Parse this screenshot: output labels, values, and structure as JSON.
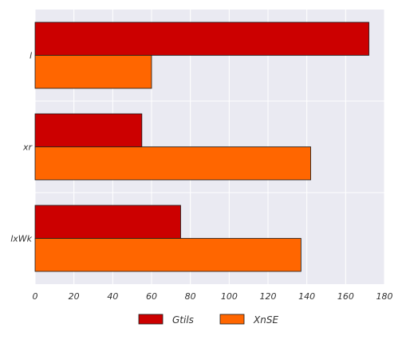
{
  "chart_data": {
    "type": "bar",
    "orientation": "horizontal",
    "categories": [
      "l",
      "xr",
      "lxWk"
    ],
    "series": [
      {
        "name": "Gtils",
        "values": [
          172,
          55,
          75
        ],
        "color": "#cc0000"
      },
      {
        "name": "XnSE",
        "values": [
          60,
          142,
          137
        ],
        "color": "#ff6600"
      }
    ],
    "xlim": [
      0,
      180
    ],
    "x_ticks": [
      0,
      20,
      40,
      60,
      80,
      100,
      120,
      140,
      160,
      180
    ],
    "title": "",
    "xlabel": "",
    "ylabel": "",
    "grid": true,
    "legend_position": "bottom-center",
    "background_color": "#eaeaf2",
    "grid_color": "#ffffff"
  }
}
